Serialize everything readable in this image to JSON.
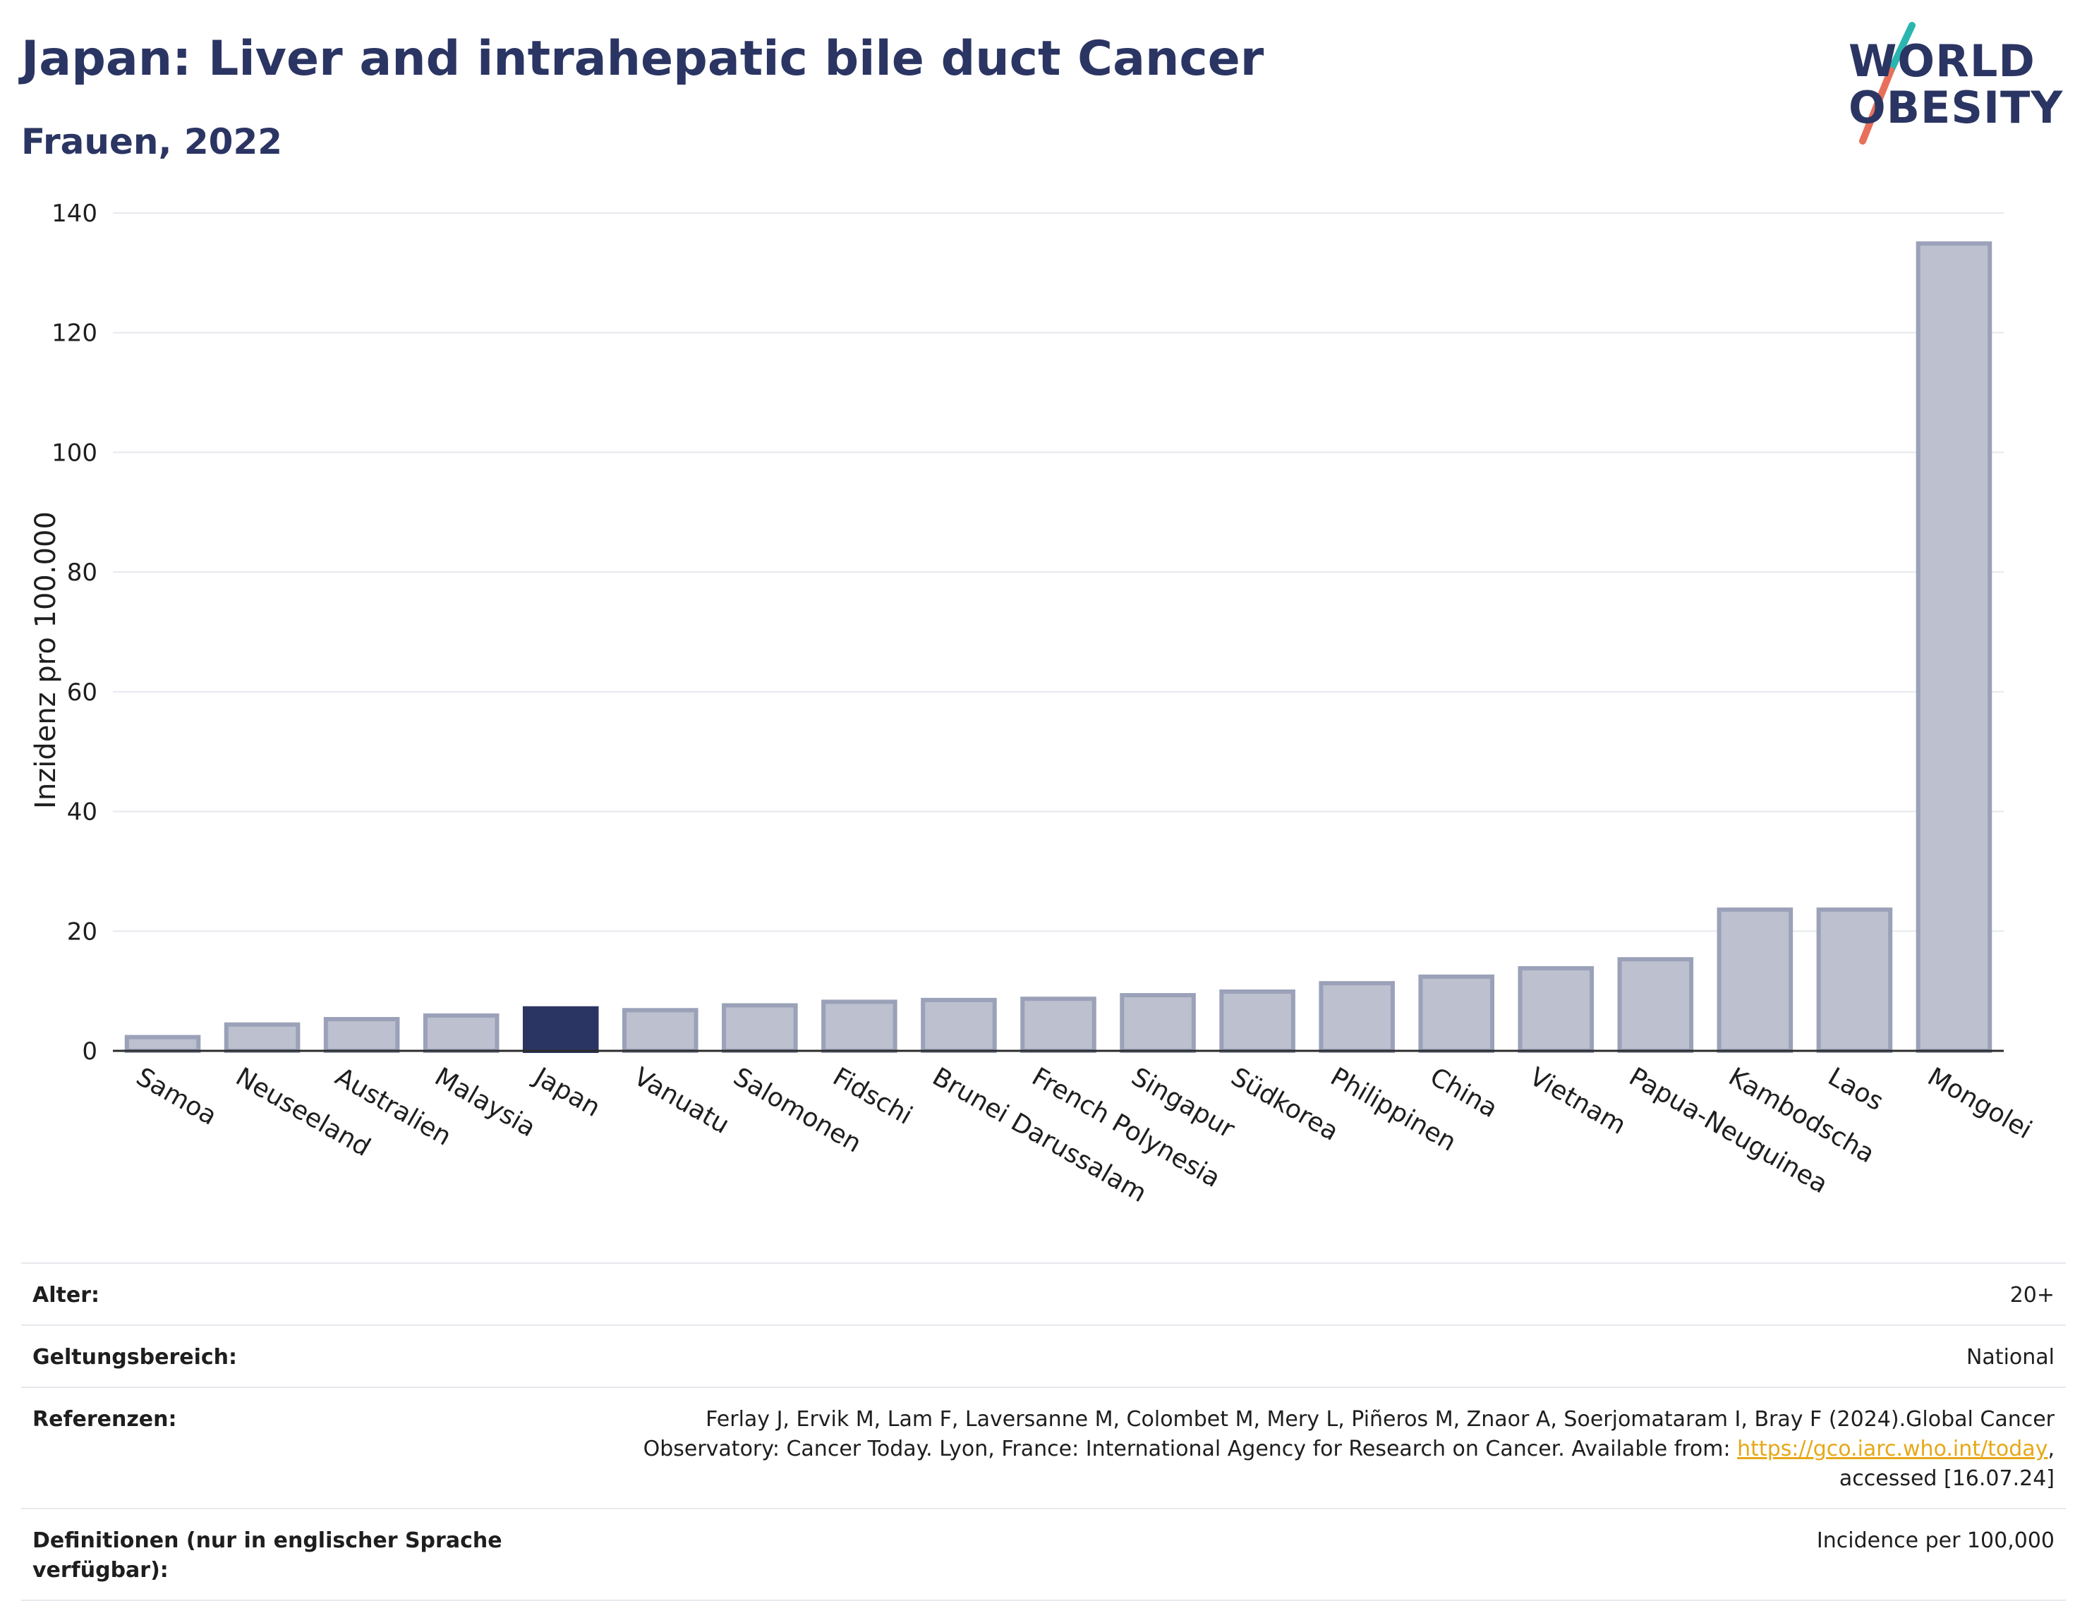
{
  "header": {
    "title": "Japan: Liver and intrahepatic bile duct Cancer",
    "subtitle": "Frauen, 2022"
  },
  "logo": {
    "line1": "WORLD",
    "line2": "OBESITY",
    "colors": {
      "text": "#2b3563",
      "teal": "#2bb5b0",
      "coral": "#e8705b"
    }
  },
  "chart_data": {
    "type": "bar",
    "title": "",
    "ylabel": "Inzidenz pro 100.000",
    "xlabel": "",
    "ylim": [
      0,
      140
    ],
    "yticks": [
      0,
      20,
      40,
      60,
      80,
      100,
      120,
      140
    ],
    "grid": true,
    "highlight": "Japan",
    "colors": {
      "bar": "#bcc0cf",
      "bar_edge": "#9aa1b8",
      "highlight": "#2b3563",
      "axis": "#2b2b2b"
    },
    "categories": [
      "Samoa",
      "Neuseeland",
      "Australien",
      "Malaysia",
      "Japan",
      "Vanuatu",
      "Salomonen",
      "Fidschi",
      "Brunei Darussalam",
      "French Polynesia",
      "Singapur",
      "Südkorea",
      "Philippinen",
      "China",
      "Vietnam",
      "Papua-Neuguinea",
      "Kambodscha",
      "Laos",
      "Mongolei"
    ],
    "values": [
      2.3,
      4.4,
      5.3,
      5.9,
      7.1,
      6.8,
      7.6,
      8.2,
      8.5,
      8.7,
      9.3,
      9.9,
      11.3,
      12.4,
      13.8,
      15.3,
      23.6,
      23.6,
      134.9
    ]
  },
  "info": {
    "rows": [
      {
        "label": "Alter:",
        "value": "20+"
      },
      {
        "label": "Geltungsbereich:",
        "value": "National"
      },
      {
        "label": "Referenzen:",
        "value_before": "Ferlay J, Ervik M, Lam F, Laversanne M, Colombet M, Mery L, Piñeros M, Znaor A, Soerjomataram I, Bray F (2024).Global Cancer Observatory: Cancer Today. Lyon, France: International Agency for Research on Cancer. Available from: ",
        "link": "https://gco.iarc.who.int/today",
        "value_after": ", accessed [16.07.24]"
      },
      {
        "label": "Definitionen (nur in englischer Sprache verfügbar):",
        "value": "Incidence per 100,000"
      }
    ]
  }
}
